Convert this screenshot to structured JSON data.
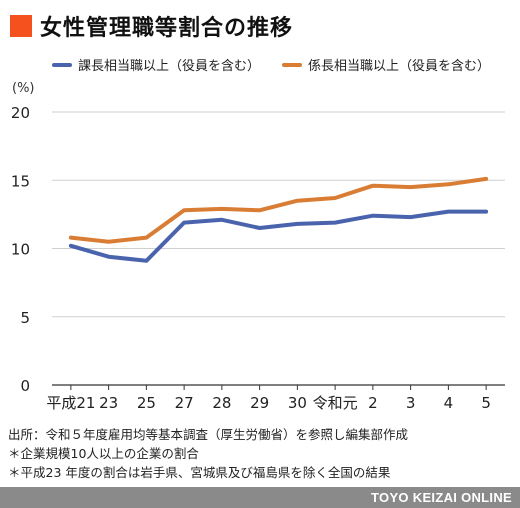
{
  "header": {
    "title": "女性管理職等割合の推移"
  },
  "chart_data": {
    "type": "line",
    "unit_label": "(%)",
    "categories": [
      "平成21",
      "23",
      "25",
      "27",
      "28",
      "29",
      "30",
      "令和元",
      "2",
      "3",
      "4",
      "5"
    ],
    "ylim": [
      0,
      20
    ],
    "yticks": [
      0,
      5,
      10,
      15,
      20
    ],
    "grid": true,
    "legend_position": "top",
    "series": [
      {
        "name": "課長相当職以上（役員を含む）",
        "color": "#4a63ad",
        "values": [
          10.2,
          9.4,
          9.1,
          11.9,
          12.1,
          11.5,
          11.8,
          11.9,
          12.4,
          12.3,
          12.7,
          12.7
        ]
      },
      {
        "name": "係長相当職以上（役員を含む）",
        "color": "#d97d35",
        "values": [
          10.8,
          10.5,
          10.8,
          12.8,
          12.9,
          12.8,
          13.5,
          13.7,
          14.6,
          14.5,
          14.7,
          15.1
        ]
      }
    ]
  },
  "notes": [
    "出所：令和５年度雇用均等基本調査（厚生労働省）を参照し編集部作成",
    "＊企業規模10人以上の企業の割合",
    "＊平成23 年度の割合は岩手県、宮城県及び福島県を除く全国の結果"
  ],
  "footer": {
    "brand": "TOYO KEIZAI ONLINE"
  }
}
